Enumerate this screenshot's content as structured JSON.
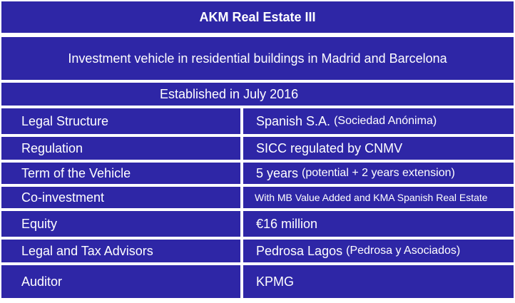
{
  "header": {
    "title": "AKM Real Estate III",
    "description": "Investment vehicle in residential buildings in Madrid and Barcelona",
    "established": "Established in July 2016"
  },
  "rows": [
    {
      "label": "Legal Structure",
      "value": "Spanish S.A.",
      "detail": "(Sociedad Anónima)"
    },
    {
      "label": "Regulation",
      "value": "SICC regulated by CNMV",
      "detail": ""
    },
    {
      "label": "Term of the Vehicle",
      "value": "5 years",
      "detail": "(potential + 2 years extension)"
    },
    {
      "label": "Co-investment",
      "value": "With MB Value Added and KMA Spanish Real Estate",
      "detail": ""
    },
    {
      "label": "Equity",
      "value": "€16 million",
      "detail": ""
    },
    {
      "label": "Legal and Tax Advisors",
      "value": "Pedrosa Lagos",
      "detail": "(Pedrosa y Asociados)"
    },
    {
      "label": "Auditor",
      "value": "KPMG",
      "detail": ""
    }
  ],
  "colors": {
    "cell_background": "#2e26a6",
    "grid_lines": "#ffffff",
    "text": "#ffffff"
  }
}
